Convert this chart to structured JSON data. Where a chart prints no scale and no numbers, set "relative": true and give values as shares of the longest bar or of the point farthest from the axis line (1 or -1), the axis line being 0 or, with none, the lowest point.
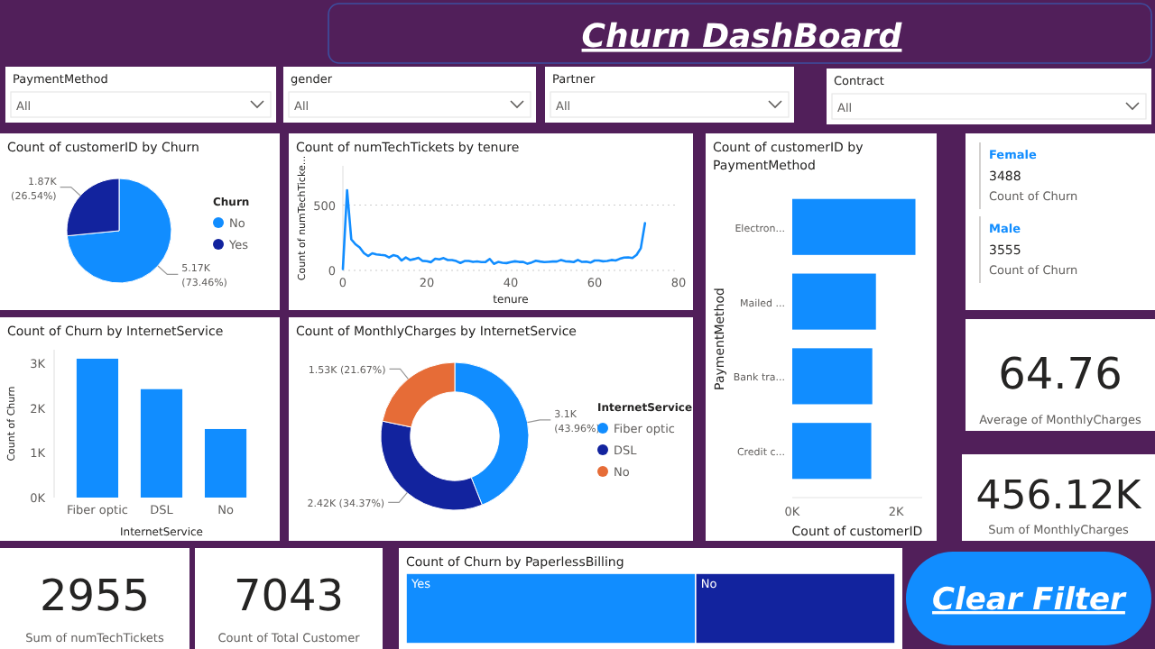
{
  "chart_data": [
    {
      "type": "other",
      "title": "Churn DashBoard",
      "categories": [
        "PaymentMethod",
        "gender",
        "Partner",
        "Contract"
      ],
      "annotations": [
        "All",
        "All",
        "All",
        "All"
      ]
    },
    {
      "type": "pie",
      "title": "Count of customerID by Churn",
      "legend_title": "Churn",
      "legend": "right",
      "categories": [
        "No",
        "Yes"
      ],
      "values": [
        5170,
        1870
      ],
      "value_labels": [
        "5.17K\n(73.46%)",
        "1.87K\n(26.54%)"
      ],
      "colors": [
        "#118dff",
        "#12239e"
      ]
    },
    {
      "type": "line",
      "title": "Count of numTechTickets by tenure",
      "xlabel": "tenure",
      "ylabel": "Count of numTechTicke...",
      "xlim": [
        0,
        80
      ],
      "ylim": [
        0,
        800
      ],
      "xticks": [
        0,
        20,
        40,
        60,
        80
      ],
      "yticks": [
        0,
        500
      ],
      "grid": "y",
      "marker": "none",
      "line_style": "solid",
      "x": [
        0,
        1,
        2,
        3,
        4,
        5,
        6,
        7,
        8,
        9,
        10,
        11,
        12,
        13,
        14,
        15,
        16,
        17,
        18,
        19,
        20,
        21,
        22,
        23,
        24,
        25,
        26,
        27,
        28,
        29,
        30,
        31,
        32,
        33,
        34,
        35,
        36,
        37,
        38,
        39,
        40,
        41,
        42,
        43,
        44,
        45,
        46,
        47,
        48,
        49,
        50,
        51,
        52,
        53,
        54,
        55,
        56,
        57,
        58,
        59,
        60,
        61,
        62,
        63,
        64,
        65,
        66,
        67,
        68,
        69,
        70,
        71,
        72
      ],
      "series": [
        {
          "color": "#118dff",
          "values": [
            11,
            613,
            238,
            200,
            176,
            133,
            110,
            131,
            123,
            119,
            116,
            99,
            117,
            109,
            76,
            99,
            80,
            87,
            97,
            73,
            71,
            63,
            90,
            85,
            94,
            79,
            79,
            72,
            57,
            72,
            72,
            65,
            69,
            64,
            65,
            88,
            50,
            65,
            59,
            56,
            64,
            70,
            65,
            65,
            51,
            61,
            74,
            68,
            64,
            66,
            68,
            68,
            80,
            70,
            68,
            64,
            80,
            65,
            67,
            60,
            76,
            76,
            70,
            72,
            80,
            76,
            89,
            98,
            100,
            95,
            119,
            170,
            362
          ]
        }
      ]
    },
    {
      "type": "bar",
      "orientation": "horizontal",
      "title": "Count of customerID by PaymentMethod",
      "xlabel": "Count of customerID",
      "ylabel": "PaymentMethod",
      "categories": [
        "Electron...",
        "Mailed ...",
        "Bank tra...",
        "Credit c..."
      ],
      "values": [
        2370,
        1610,
        1540,
        1520
      ],
      "color": "#118dff",
      "xlim": [
        0,
        2500
      ],
      "xticks": [
        {
          "value": 0,
          "label": "0K"
        },
        {
          "value": 2000,
          "label": "2K"
        }
      ]
    },
    {
      "type": "other",
      "categories": [
        "Female",
        "Male"
      ],
      "values": [
        3488,
        3555
      ],
      "value_labels": [
        "3488",
        "3555"
      ],
      "annotations": [
        "Count of Churn",
        "Count of Churn"
      ]
    },
    {
      "type": "bar",
      "title": "Count of Churn by InternetService",
      "xlabel": "InternetService",
      "ylabel": "Count of Churn",
      "categories": [
        "Fiber optic",
        "DSL",
        "No"
      ],
      "values": [
        3100,
        2420,
        1530
      ],
      "color": "#118dff",
      "ylim": [
        0,
        3300
      ],
      "yticks": [
        {
          "value": 0,
          "label": "0K"
        },
        {
          "value": 1000,
          "label": "1K"
        },
        {
          "value": 2000,
          "label": "2K"
        },
        {
          "value": 3000,
          "label": "3K"
        }
      ]
    },
    {
      "type": "donut",
      "title": "Count of MonthlyCharges by InternetService",
      "legend_title": "InternetService",
      "legend": "right",
      "categories": [
        "Fiber optic",
        "DSL",
        "No"
      ],
      "values": [
        3100,
        2420,
        1530
      ],
      "value_labels": [
        "3.1K\n(43.96%)",
        "2.42K (34.37%)",
        "1.53K (21.67%)"
      ],
      "colors": [
        "#118dff",
        "#12239e",
        "#e66c37"
      ]
    },
    {
      "type": "other",
      "categories": [
        "Average of MonthlyCharges"
      ],
      "values": [
        64.76
      ],
      "value_labels": [
        "64.76"
      ]
    },
    {
      "type": "other",
      "categories": [
        "Sum of MonthlyCharges"
      ],
      "values": [
        456120
      ],
      "value_labels": [
        "456.12K"
      ]
    },
    {
      "type": "other",
      "categories": [
        "Sum of numTechTickets"
      ],
      "values": [
        2955
      ],
      "value_labels": [
        "2955"
      ]
    },
    {
      "type": "other",
      "categories": [
        "Count of Total Customer"
      ],
      "values": [
        7043
      ],
      "value_labels": [
        "7043"
      ]
    },
    {
      "type": "bar",
      "orientation": "horizontal",
      "stacked": true,
      "relative": true,
      "title": "Count of Churn by PaperlessBilling",
      "categories": [
        null
      ],
      "series": [
        {
          "name": "Yes",
          "color": "#118dff",
          "values": [
            0.592
          ]
        },
        {
          "name": "No",
          "color": "#12239e",
          "values": [
            0.408
          ]
        }
      ]
    },
    {
      "type": "other",
      "title": "Clear Filter"
    }
  ]
}
